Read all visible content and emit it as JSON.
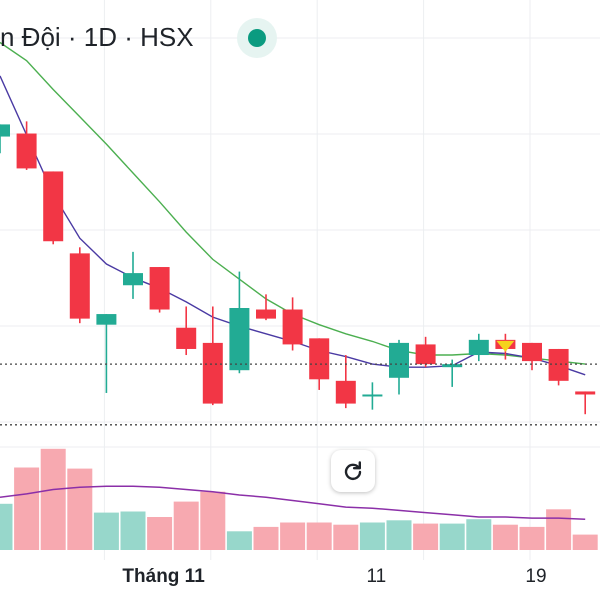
{
  "header": {
    "title": "n Đội · 1D · HSX",
    "status": "market-open-dot"
  },
  "colors": {
    "up": "#22ab94",
    "down": "#f23645",
    "ma_fast": "#4a3aa3",
    "ma_slow": "#4caf50",
    "volume_ma": "#8b2fa8",
    "vol_up": "#97d7cb",
    "vol_down": "#f7a9b0"
  },
  "reset_button": {
    "icon": "rotate-icon"
  },
  "chart_data": {
    "type": "candlestick",
    "x_tick_labels": [
      {
        "index": 6,
        "text": "Tháng 11",
        "bold": true
      },
      {
        "index": 14,
        "text": "11",
        "bold": false
      },
      {
        "index": 20,
        "text": "19",
        "bold": false
      }
    ],
    "candles": [
      {
        "o": 74.0,
        "h": 74.8,
        "l": 72.9,
        "c": 74.8
      },
      {
        "o": 74.2,
        "h": 75.0,
        "l": 71.8,
        "c": 71.9
      },
      {
        "o": 71.7,
        "h": 71.7,
        "l": 66.9,
        "c": 67.1
      },
      {
        "o": 66.3,
        "h": 66.7,
        "l": 61.7,
        "c": 62.0
      },
      {
        "o": 61.6,
        "h": 62.3,
        "l": 57.1,
        "c": 62.3
      },
      {
        "o": 64.2,
        "h": 66.4,
        "l": 63.3,
        "c": 65.0
      },
      {
        "o": 65.4,
        "h": 65.4,
        "l": 62.4,
        "c": 62.6
      },
      {
        "o": 61.4,
        "h": 62.8,
        "l": 59.6,
        "c": 60.0
      },
      {
        "o": 60.4,
        "h": 62.8,
        "l": 56.3,
        "c": 56.4
      },
      {
        "o": 58.6,
        "h": 65.1,
        "l": 58.4,
        "c": 62.7
      },
      {
        "o": 62.6,
        "h": 63.6,
        "l": 61.9,
        "c": 62.0
      },
      {
        "o": 62.6,
        "h": 63.4,
        "l": 59.9,
        "c": 60.3
      },
      {
        "o": 60.7,
        "h": 60.7,
        "l": 57.3,
        "c": 58.0
      },
      {
        "o": 57.9,
        "h": 59.6,
        "l": 56.1,
        "c": 56.4
      },
      {
        "o": 57.0,
        "h": 57.8,
        "l": 56.0,
        "c": 57.0
      },
      {
        "o": 58.1,
        "h": 60.6,
        "l": 57.0,
        "c": 60.4
      },
      {
        "o": 60.3,
        "h": 60.8,
        "l": 58.8,
        "c": 59.0
      },
      {
        "o": 58.8,
        "h": 59.3,
        "l": 57.5,
        "c": 59.0
      },
      {
        "o": 59.6,
        "h": 61.0,
        "l": 59.2,
        "c": 60.6
      },
      {
        "o": 60.6,
        "h": 61.0,
        "l": 59.3,
        "c": 60.0
      },
      {
        "o": 60.4,
        "h": 60.4,
        "l": 58.6,
        "c": 59.2
      },
      {
        "o": 60.0,
        "h": 60.0,
        "l": 57.6,
        "c": 57.9
      },
      {
        "o": 57.2,
        "h": 57.2,
        "l": 55.7,
        "c": 57.0
      }
    ],
    "ma_fast": [
      78.0,
      74.1,
      70.2,
      67.3,
      65.6,
      64.7,
      64.0,
      63.1,
      62.1,
      61.5,
      61.0,
      60.5,
      59.9,
      59.5,
      59.0,
      58.8,
      58.8,
      58.9,
      59.8,
      59.7,
      59.4,
      58.9,
      58.3
    ],
    "ma_slow": [
      80.2,
      79.0,
      77.1,
      75.3,
      73.5,
      71.6,
      69.7,
      67.7,
      65.9,
      64.6,
      63.3,
      62.3,
      61.6,
      61.0,
      60.5,
      59.9,
      59.6,
      59.6,
      59.7,
      59.6,
      59.4,
      59.2,
      59.0
    ],
    "volume": [
      42,
      75,
      92,
      74,
      34,
      35,
      30,
      44,
      53,
      17,
      21,
      25,
      25,
      23,
      25,
      27,
      24,
      24,
      28,
      23,
      21,
      37,
      14
    ],
    "volume_ma": [
      48,
      51,
      55,
      57,
      58,
      58,
      57,
      55,
      53,
      50,
      48,
      45,
      42,
      39,
      38,
      36,
      34,
      32,
      30,
      30,
      29,
      29,
      28
    ],
    "ylim": [
      54.0,
      83.0
    ],
    "vol_ylim": [
      0,
      100
    ],
    "last_price": 59.0,
    "prev_close": 55.0,
    "marker_index": 19
  }
}
